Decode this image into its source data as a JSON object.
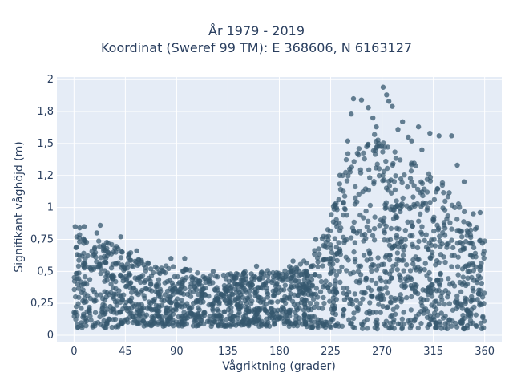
{
  "chart_data": {
    "type": "scatter",
    "title_line1": "År 1979 - 2019",
    "title_line2": "Koordinat (Sweref 99 TM): E 368606, N 6163127",
    "xlabel": "Vågriktning (grader)",
    "ylabel": "Signifikant våghöjd (m)",
    "xlim": [
      -15,
      375
    ],
    "ylim": [
      -0.05,
      2.02
    ],
    "xticks": [
      0,
      45,
      90,
      135,
      180,
      225,
      270,
      315,
      360
    ],
    "xtick_labels": [
      "0",
      "45",
      "90",
      "135",
      "180",
      "225",
      "270",
      "315",
      "360"
    ],
    "yticks": [
      0,
      0.25,
      0.5,
      0.75,
      1,
      1.25,
      1.5,
      1.75,
      2
    ],
    "ytick_labels": [
      "0",
      "0,25",
      "0,5",
      "0,75",
      "1",
      "1,2",
      "1,5",
      "1,8",
      "2"
    ],
    "grid": true,
    "marker_color": "#34576d",
    "plot_bg": "#e5ecf6",
    "envelope": {
      "x": [
        0,
        15,
        30,
        45,
        60,
        75,
        90,
        105,
        120,
        135,
        150,
        165,
        180,
        195,
        210,
        225,
        240,
        255,
        270,
        285,
        300,
        315,
        330,
        345,
        360
      ],
      "y_min": [
        0.06,
        0.06,
        0.06,
        0.07,
        0.07,
        0.07,
        0.07,
        0.07,
        0.07,
        0.07,
        0.07,
        0.07,
        0.07,
        0.07,
        0.06,
        0.06,
        0.05,
        0.05,
        0.05,
        0.05,
        0.05,
        0.05,
        0.05,
        0.05,
        0.05
      ],
      "y_max": [
        0.78,
        0.8,
        0.72,
        0.68,
        0.58,
        0.55,
        0.55,
        0.5,
        0.48,
        0.48,
        0.5,
        0.5,
        0.52,
        0.55,
        0.65,
        0.95,
        1.45,
        1.6,
        1.55,
        1.45,
        1.35,
        1.25,
        1.15,
        0.95,
        0.75
      ]
    },
    "outliers": [
      {
        "x": 1,
        "y": 0.85
      },
      {
        "x": 5,
        "y": 0.84
      },
      {
        "x": 9,
        "y": 0.85
      },
      {
        "x": 23,
        "y": 0.86
      },
      {
        "x": 20,
        "y": 0.8
      },
      {
        "x": 41,
        "y": 0.77
      },
      {
        "x": 55,
        "y": 0.66
      },
      {
        "x": 85,
        "y": 0.6
      },
      {
        "x": 97,
        "y": 0.6
      },
      {
        "x": 122,
        "y": 0.5
      },
      {
        "x": 160,
        "y": 0.54
      },
      {
        "x": 192,
        "y": 0.58
      },
      {
        "x": 212,
        "y": 0.75
      },
      {
        "x": 233,
        "y": 1.25
      },
      {
        "x": 243,
        "y": 1.73
      },
      {
        "x": 245,
        "y": 1.85
      },
      {
        "x": 252,
        "y": 1.84
      },
      {
        "x": 258,
        "y": 1.78
      },
      {
        "x": 262,
        "y": 1.7
      },
      {
        "x": 267,
        "y": 1.5
      },
      {
        "x": 271,
        "y": 1.94
      },
      {
        "x": 274,
        "y": 1.88
      },
      {
        "x": 276,
        "y": 1.83
      },
      {
        "x": 279,
        "y": 1.79
      },
      {
        "x": 284,
        "y": 1.61
      },
      {
        "x": 293,
        "y": 1.55
      },
      {
        "x": 302,
        "y": 1.63
      },
      {
        "x": 312,
        "y": 1.58
      },
      {
        "x": 320,
        "y": 1.56
      },
      {
        "x": 331,
        "y": 1.56
      },
      {
        "x": 336,
        "y": 1.33
      },
      {
        "x": 342,
        "y": 1.2
      },
      {
        "x": 350,
        "y": 0.95
      },
      {
        "x": 356,
        "y": 0.96
      },
      {
        "x": 358,
        "y": 0.72
      },
      {
        "x": 305,
        "y": 1.45
      },
      {
        "x": 296,
        "y": 1.52
      },
      {
        "x": 288,
        "y": 1.67
      },
      {
        "x": 265,
        "y": 1.63
      },
      {
        "x": 240,
        "y": 1.52
      }
    ]
  }
}
